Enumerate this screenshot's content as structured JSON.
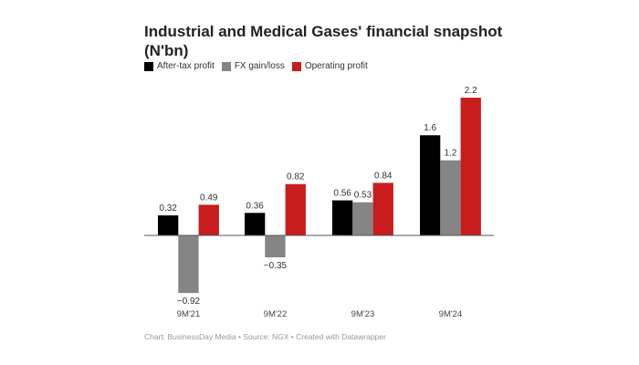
{
  "chart_data": {
    "type": "bar",
    "title": "Industrial and Medical Gases' financial snapshot (N'bn)",
    "categories": [
      "9M'21",
      "9M'22",
      "9M'23",
      "9M'24"
    ],
    "series": [
      {
        "name": "After-tax profit",
        "color": "#000000",
        "values": [
          0.32,
          0.36,
          0.56,
          1.6
        ],
        "labels": [
          "0.32",
          "0.36",
          "0.56",
          "1.6"
        ]
      },
      {
        "name": "FX gain/loss",
        "color": "#858585",
        "values": [
          -0.92,
          -0.35,
          0.53,
          1.2
        ],
        "labels": [
          "−0.92",
          "−0.35",
          "0.53",
          "1.2"
        ]
      },
      {
        "name": "Operating profit",
        "color": "#c91c1c",
        "values": [
          0.49,
          0.82,
          0.84,
          2.2
        ],
        "labels": [
          "0.49",
          "0.82",
          "0.84",
          "2.2"
        ]
      }
    ],
    "xlabel": "",
    "ylabel": "",
    "grid": false,
    "legend": "top-left"
  },
  "footer": "Chart: BusinessDay Media • Source: NGX • Created with Datawrapper"
}
